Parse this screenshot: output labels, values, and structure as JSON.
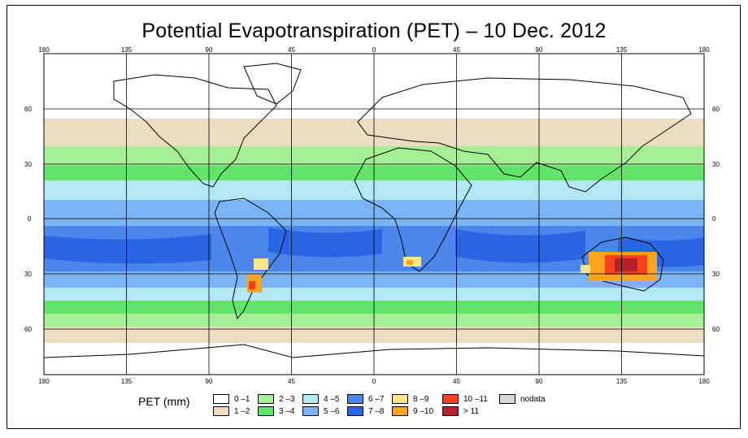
{
  "title": "Potential Evapotranspiration (PET) – 10 Dec. 2012",
  "axes": {
    "lon_ticks": [
      "180",
      "135",
      "90",
      "45",
      "0",
      "45",
      "90",
      "135",
      "180"
    ],
    "lat_ticks_left": [
      "60",
      "30",
      "0",
      "30",
      "60"
    ],
    "lat_ticks_right": [
      "60",
      "30",
      "0",
      "30",
      "60"
    ]
  },
  "legend": {
    "title": "PET (mm)",
    "classes": [
      {
        "label": "0 –1",
        "color": "#ffffff"
      },
      {
        "label": "1 –2",
        "color": "#ecdcc0"
      },
      {
        "label": "2 –3",
        "color": "#a6ee94"
      },
      {
        "label": "3 –4",
        "color": "#62e46a"
      },
      {
        "label": "4 –5",
        "color": "#b2e8f6"
      },
      {
        "label": "5 –6",
        "color": "#7ab4f4"
      },
      {
        "label": "6 –7",
        "color": "#4a86ec"
      },
      {
        "label": "7 –8",
        "color": "#2a66e4"
      },
      {
        "label": "8 –9",
        "color": "#fee48a"
      },
      {
        "label": "9 –10",
        "color": "#fda41c"
      },
      {
        "label": "10 –11",
        "color": "#f8401c"
      },
      {
        "label": "> 11",
        "color": "#b4202c"
      },
      {
        "label": "nodata",
        "color": "#d8d8d8"
      }
    ]
  }
}
